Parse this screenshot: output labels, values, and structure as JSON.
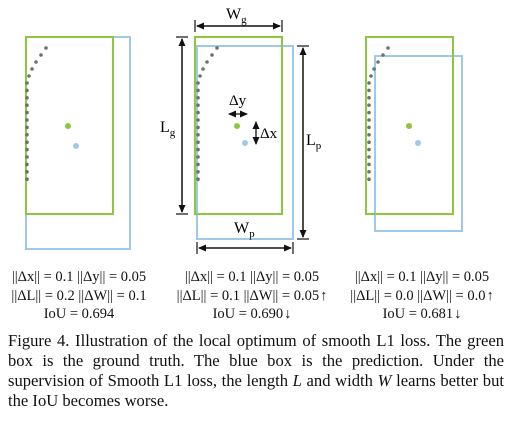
{
  "panels": [
    {
      "stats": {
        "line1": "||Δx|| = 0.1 ||Δy|| = 0.05",
        "line2": "||ΔL|| = 0.2 ||ΔW|| = 0.1",
        "line3": "IoU = 0.694"
      }
    },
    {
      "labels": {
        "wg": "W",
        "wg_sub": "g",
        "lg": "L",
        "lg_sub": "g",
        "lp": "L",
        "lp_sub": "p",
        "wp": "W",
        "wp_sub": "p",
        "dy": "Δy",
        "dx": "Δx"
      },
      "stats": {
        "line1": "||Δx|| = 0.1 ||Δy|| = 0.05",
        "line2": "||ΔL|| = 0.1 ||ΔW|| = 0.05",
        "line2_arrow": "↑",
        "line3": "IoU = 0.690",
        "line3_arrow": "↓"
      }
    },
    {
      "stats": {
        "line1": "||Δx|| = 0.1 ||Δy|| = 0.05",
        "line2": "||ΔL|| = 0.0 ||ΔW|| = 0.0",
        "line2_arrow": "↑",
        "line3": "IoU = 0.681",
        "line3_arrow": "↓"
      }
    }
  ],
  "caption": {
    "part1": "Figure 4. Illustration of the local optimum of smooth L1 loss. The green box is the ground truth. The blue box is the prediction. Under the supervision of Smooth L1 loss, the length ",
    "var_l": "L",
    "part2": " and width ",
    "var_w": "W",
    "part3": " learns better but the IoU becomes worse."
  },
  "colors": {
    "ground_truth": "#8dc63f",
    "prediction": "#9ec9e8",
    "trajectory_dots": "#707070",
    "arrows": "#111111"
  }
}
